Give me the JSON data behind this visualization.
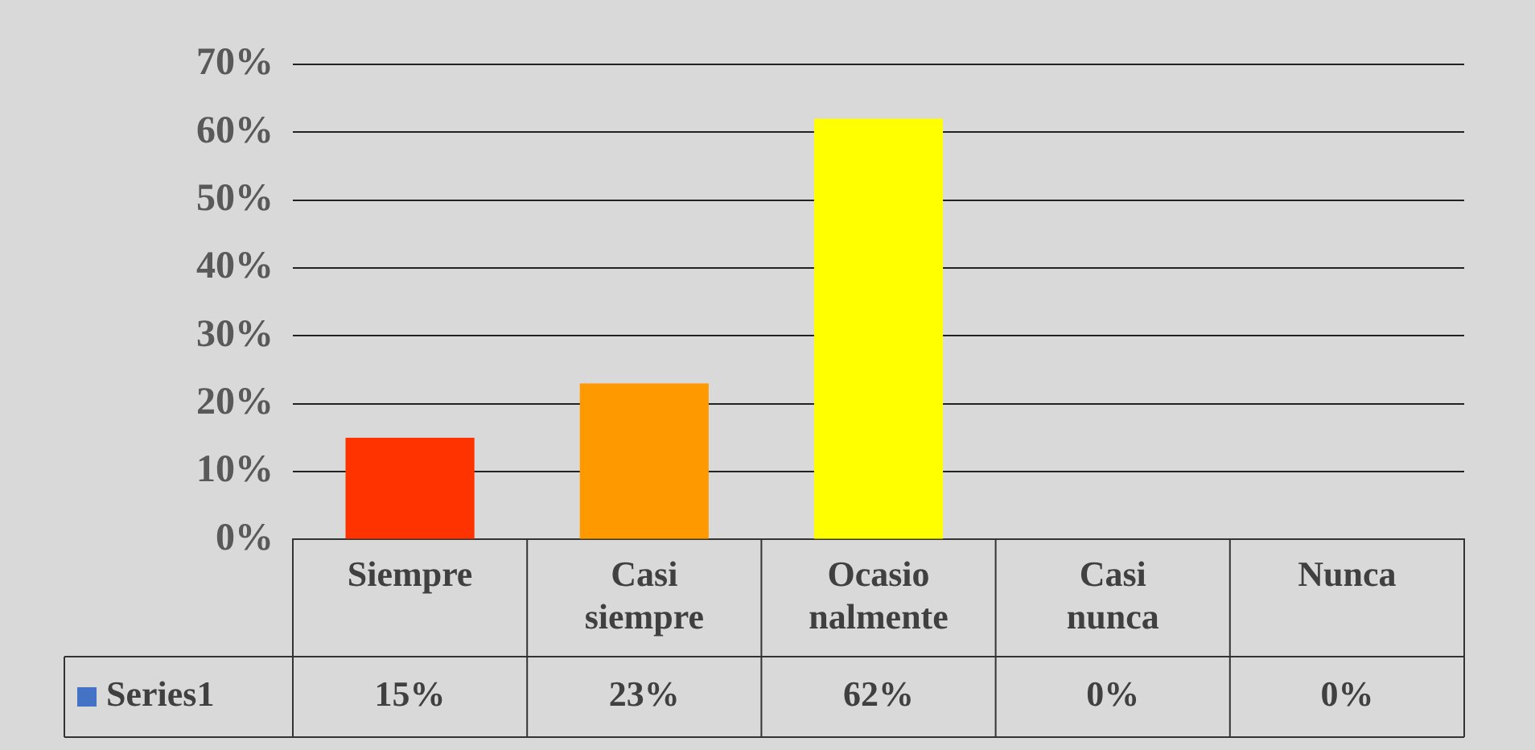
{
  "chart_data": {
    "type": "bar",
    "categories": [
      "Siempre",
      "Casi siempre",
      "Ocasionalmente",
      "Casi nunca",
      "Nunca"
    ],
    "series": [
      {
        "name": "Series1",
        "color": "#4472c4",
        "colors": [
          "#ff3300",
          "#ff9900",
          "#ffff00",
          "#70ad47",
          "#0099cc"
        ],
        "values": [
          15,
          23,
          62,
          0,
          0
        ],
        "value_labels": [
          "15%",
          "23%",
          "62%",
          "0%",
          "0%"
        ]
      }
    ],
    "ylim": [
      0,
      70
    ],
    "yticks": [
      {
        "value": 0,
        "label": "0%"
      },
      {
        "value": 10,
        "label": "10%"
      },
      {
        "value": 20,
        "label": "20%"
      },
      {
        "value": 30,
        "label": "30%"
      },
      {
        "value": 40,
        "label": "40%"
      },
      {
        "value": 50,
        "label": "50%"
      },
      {
        "value": 60,
        "label": "60%"
      },
      {
        "value": 70,
        "label": "70%"
      }
    ],
    "grid": "y",
    "legend": "bottom left"
  }
}
